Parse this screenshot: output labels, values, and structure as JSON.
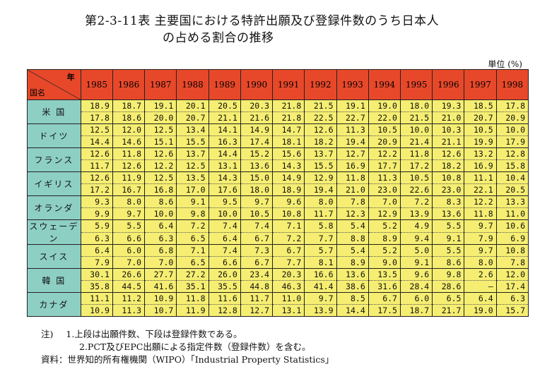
{
  "title": {
    "line1": "第2-3-11表 主要国における特許出願及び登録件数のうち日本人",
    "line2": "の占める割合の推移"
  },
  "unit": "単位 (%)",
  "table": {
    "corner_year": "年",
    "corner_country": "国名",
    "years": [
      "1985",
      "1986",
      "1987",
      "1988",
      "1989",
      "1990",
      "1991",
      "1992",
      "1993",
      "1994",
      "1995",
      "1996",
      "1997",
      "1998"
    ],
    "rows": [
      {
        "country": "米 国",
        "applications": [
          "18.9",
          "18.7",
          "19.1",
          "20.1",
          "20.5",
          "20.3",
          "21.8",
          "21.5",
          "19.1",
          "19.0",
          "18.0",
          "19.3",
          "18.5",
          "17.8"
        ],
        "registrations": [
          "17.8",
          "18.6",
          "20.0",
          "20.7",
          "21.1",
          "21.6",
          "21.8",
          "22.5",
          "22.7",
          "22.0",
          "21.5",
          "21.0",
          "20.7",
          "20.9"
        ]
      },
      {
        "country": "ドイツ",
        "applications": [
          "12.5",
          "12.0",
          "12.5",
          "13.4",
          "14.1",
          "14.9",
          "14.7",
          "12.6",
          "11.3",
          "10.5",
          "10.0",
          "10.3",
          "10.5",
          "10.0"
        ],
        "registrations": [
          "14.4",
          "14.6",
          "15.1",
          "15.5",
          "16.3",
          "17.4",
          "18.1",
          "18.2",
          "19.4",
          "20.9",
          "21.4",
          "21.1",
          "19.9",
          "17.9"
        ]
      },
      {
        "country": "フランス",
        "applications": [
          "12.6",
          "11.8",
          "12.6",
          "13.7",
          "14.4",
          "15.2",
          "15.6",
          "13.7",
          "12.7",
          "12.2",
          "11.8",
          "12.6",
          "13.2",
          "12.8"
        ],
        "registrations": [
          "11.7",
          "12.6",
          "12.2",
          "12.5",
          "13.1",
          "13.6",
          "14.3",
          "15.5",
          "16.9",
          "17.7",
          "17.2",
          "18.2",
          "16.9",
          "15.8"
        ]
      },
      {
        "country": "イギリス",
        "applications": [
          "12.6",
          "11.9",
          "12.5",
          "13.5",
          "14.3",
          "15.0",
          "14.9",
          "12.9",
          "11.8",
          "11.3",
          "10.5",
          "10.8",
          "11.1",
          "10.4"
        ],
        "registrations": [
          "17.2",
          "16.7",
          "16.8",
          "17.0",
          "17.6",
          "18.0",
          "18.9",
          "19.4",
          "21.0",
          "23.0",
          "22.6",
          "23.0",
          "22.1",
          "20.5"
        ]
      },
      {
        "country": "オランダ",
        "applications": [
          "9.3",
          "8.0",
          "8.6",
          "9.1",
          "9.5",
          "9.7",
          "9.6",
          "8.0",
          "7.8",
          "7.0",
          "7.2",
          "8.3",
          "12.2",
          "13.3"
        ],
        "registrations": [
          "9.9",
          "9.7",
          "10.0",
          "9.8",
          "10.0",
          "10.5",
          "10.8",
          "11.7",
          "12.3",
          "12.9",
          "13.9",
          "13.6",
          "11.8",
          "11.0"
        ]
      },
      {
        "country": "スウェーデン",
        "applications": [
          "5.9",
          "5.5",
          "6.4",
          "7.2",
          "7.4",
          "7.4",
          "7.1",
          "5.8",
          "5.4",
          "5.2",
          "4.9",
          "5.5",
          "9.7",
          "10.6"
        ],
        "registrations": [
          "6.3",
          "6.6",
          "6.3",
          "6.5",
          "6.4",
          "6.7",
          "7.2",
          "7.7",
          "8.8",
          "8.9",
          "9.4",
          "9.1",
          "7.9",
          "6.9"
        ]
      },
      {
        "country": "スイス",
        "applications": [
          "6.4",
          "6.0",
          "6.8",
          "7.1",
          "7.4",
          "7.3",
          "6.7",
          "5.7",
          "5.4",
          "5.2",
          "5.0",
          "5.5",
          "9.7",
          "10.8"
        ],
        "registrations": [
          "7.9",
          "7.0",
          "7.0",
          "6.5",
          "6.6",
          "6.7",
          "7.7",
          "8.1",
          "8.9",
          "9.0",
          "9.1",
          "8.6",
          "8.0",
          "7.8"
        ]
      },
      {
        "country": "韓 国",
        "applications": [
          "30.1",
          "26.6",
          "27.7",
          "27.2",
          "26.0",
          "23.4",
          "20.3",
          "16.6",
          "13.6",
          "13.5",
          "9.6",
          "9.8",
          "2.6",
          "12.0"
        ],
        "registrations": [
          "35.8",
          "44.5",
          "41.6",
          "35.1",
          "35.5",
          "44.8",
          "46.3",
          "41.4",
          "38.6",
          "31.6",
          "28.4",
          "28.6",
          "–",
          "17.4"
        ]
      },
      {
        "country": "カナダ",
        "applications": [
          "11.1",
          "11.2",
          "10.9",
          "11.8",
          "11.6",
          "11.7",
          "11.0",
          "9.7",
          "8.5",
          "6.7",
          "6.0",
          "6.5",
          "6.4",
          "6.3"
        ],
        "registrations": [
          "10.9",
          "11.3",
          "10.7",
          "11.9",
          "12.8",
          "12.7",
          "13.1",
          "13.9",
          "14.4",
          "17.5",
          "18.7",
          "21.7",
          "19.0",
          "15.7"
        ]
      }
    ]
  },
  "notes": {
    "label": "注)",
    "note1": "1.上段は出願件数、下段は登録件数である。",
    "note2": "2.PCT及びEPC出願による指定件数（登録件数）を含む。",
    "source": "資料：世界知的所有権機関（WIPO）「Industrial Property Statistics」"
  }
}
